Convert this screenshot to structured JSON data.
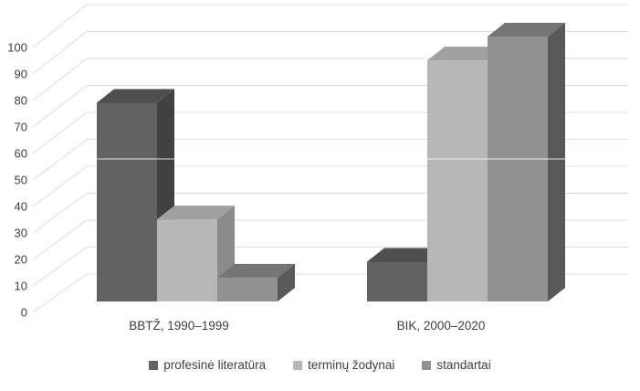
{
  "chart_data": {
    "type": "bar",
    "projection": "3d",
    "title": "",
    "xlabel": "",
    "ylabel": "",
    "categories": [
      "BBTŽ, 1990–1999",
      "BIK, 2000–2020"
    ],
    "series": [
      {
        "name": "profesinė literatūra",
        "values": [
          75,
          15
        ],
        "color_front": "#626262",
        "color_side": "#414141",
        "color_top": "#4e4e4e"
      },
      {
        "name": "terminų žodynai",
        "values": [
          31,
          91
        ],
        "color_front": "#b7b7b7",
        "color_side": "#8a8a8a",
        "color_top": "#a0a0a0"
      },
      {
        "name": "standartai",
        "values": [
          9,
          100
        ],
        "color_front": "#919191",
        "color_side": "#595959",
        "color_top": "#757575"
      }
    ],
    "yticks": [
      0,
      10,
      20,
      30,
      40,
      50,
      60,
      70,
      80,
      90,
      100
    ],
    "ylim": [
      0,
      100
    ],
    "grid": true,
    "gridline_color": "#dcdcdc",
    "axis_label_color": "#404040",
    "legend_position": "bottom",
    "background_color": "#ffffff"
  }
}
